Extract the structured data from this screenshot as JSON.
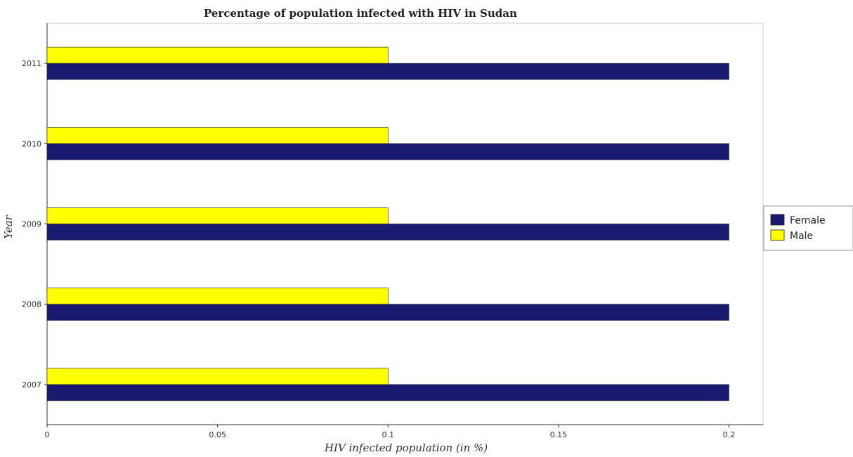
{
  "chart_data": {
    "type": "bar",
    "orientation": "horizontal",
    "title": "Percentage of population infected with HIV in Sudan",
    "xlabel": "HIV infected population (in %)",
    "ylabel": "Year",
    "categories": [
      "2007",
      "2008",
      "2009",
      "2010",
      "2011"
    ],
    "series": [
      {
        "name": "Female",
        "color": "#191970",
        "values": [
          0.2,
          0.2,
          0.2,
          0.2,
          0.2
        ]
      },
      {
        "name": "Male",
        "color": "#ffff00",
        "values": [
          0.1,
          0.1,
          0.1,
          0.1,
          0.1
        ]
      }
    ],
    "xlim": [
      0,
      0.21
    ],
    "xticks": [
      "0",
      "0.05",
      "0.1",
      "0.15",
      "0.2"
    ],
    "xtick_values": [
      0,
      0.05,
      0.1,
      0.15,
      0.2
    ],
    "grid": false,
    "legend_position": "right"
  }
}
